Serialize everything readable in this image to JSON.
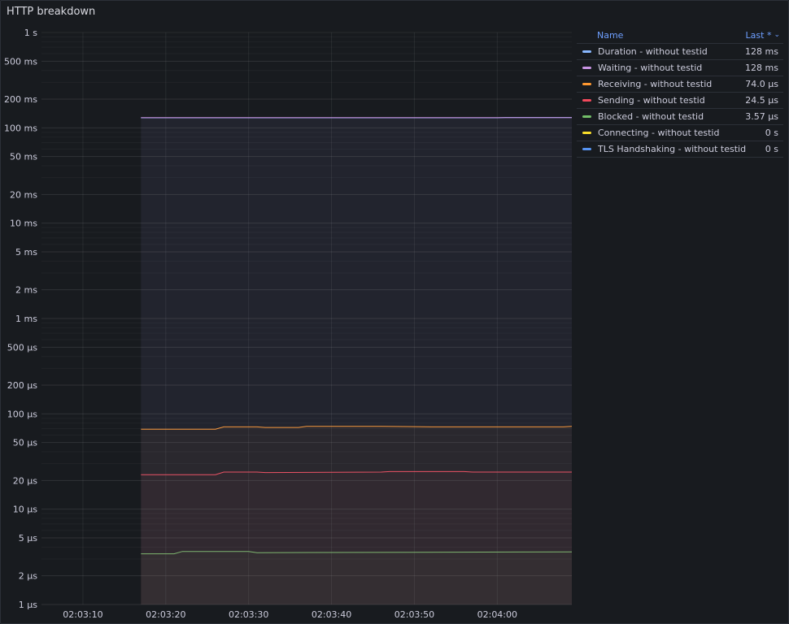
{
  "panel": {
    "title": "HTTP breakdown"
  },
  "legend": {
    "header_name": "Name",
    "header_value": "Last *",
    "header_sort_icon": "chevron-down-icon",
    "items": [
      {
        "name": "Duration - without testid",
        "value": "128 ms",
        "color": "#8ab8ff"
      },
      {
        "name": "Waiting - without testid",
        "value": "128 ms",
        "color": "#ca95e5"
      },
      {
        "name": "Receiving - without testid",
        "value": "74.0 µs",
        "color": "#ff9830"
      },
      {
        "name": "Sending - without testid",
        "value": "24.5 µs",
        "color": "#f2495c"
      },
      {
        "name": "Blocked - without testid",
        "value": "3.57 µs",
        "color": "#73bf69"
      },
      {
        "name": "Connecting - without testid",
        "value": "0 s",
        "color": "#fade2a"
      },
      {
        "name": "TLS Handshaking - without testid",
        "value": "0 s",
        "color": "#5794f2"
      }
    ]
  },
  "chart_data": {
    "type": "line",
    "title": "HTTP breakdown",
    "y_scale": "log",
    "ylim_seconds": [
      1e-06,
      1
    ],
    "y_ticks": [
      {
        "value": 1,
        "label": "1 s"
      },
      {
        "value": 0.5,
        "label": "500 ms"
      },
      {
        "value": 0.2,
        "label": "200 ms"
      },
      {
        "value": 0.1,
        "label": "100 ms"
      },
      {
        "value": 0.05,
        "label": "50 ms"
      },
      {
        "value": 0.02,
        "label": "20 ms"
      },
      {
        "value": 0.01,
        "label": "10 ms"
      },
      {
        "value": 0.005,
        "label": "5 ms"
      },
      {
        "value": 0.002,
        "label": "2 ms"
      },
      {
        "value": 0.001,
        "label": "1 ms"
      },
      {
        "value": 0.0005,
        "label": "500 µs"
      },
      {
        "value": 0.0002,
        "label": "200 µs"
      },
      {
        "value": 0.0001,
        "label": "100 µs"
      },
      {
        "value": 5e-05,
        "label": "50 µs"
      },
      {
        "value": 2e-05,
        "label": "20 µs"
      },
      {
        "value": 1e-05,
        "label": "10 µs"
      },
      {
        "value": 5e-06,
        "label": "5 µs"
      },
      {
        "value": 2e-06,
        "label": "2 µs"
      },
      {
        "value": 1e-06,
        "label": "1 µs"
      }
    ],
    "xlim": [
      "02:03:05",
      "02:04:09"
    ],
    "x_ticks": [
      "02:03:10",
      "02:03:20",
      "02:03:30",
      "02:03:40",
      "02:03:50",
      "02:04:00"
    ],
    "grid": true,
    "legend_position": "right",
    "series": [
      {
        "name": "Waiting - without testid",
        "color": "#ca95e5",
        "fill": true,
        "points": [
          [
            "02:03:17",
            0.128
          ],
          [
            "02:04:09",
            0.128
          ]
        ]
      },
      {
        "name": "Duration - without testid",
        "color": "#8ab8ff",
        "fill": true,
        "points": [
          [
            "02:03:17",
            0.1275
          ],
          [
            "02:04:00",
            0.1275
          ],
          [
            "02:04:01",
            0.1285
          ],
          [
            "02:04:09",
            0.1285
          ]
        ]
      },
      {
        "name": "Receiving - without testid",
        "color": "#ff9830",
        "fill": true,
        "points": [
          [
            "02:03:17",
            6.9e-05
          ],
          [
            "02:03:26",
            6.9e-05
          ],
          [
            "02:03:27",
            7.3e-05
          ],
          [
            "02:03:31",
            7.3e-05
          ],
          [
            "02:03:32",
            7.2e-05
          ],
          [
            "02:03:36",
            7.2e-05
          ],
          [
            "02:03:37",
            7.4e-05
          ],
          [
            "02:03:46",
            7.4e-05
          ],
          [
            "02:03:52",
            7.3e-05
          ],
          [
            "02:04:08",
            7.3e-05
          ],
          [
            "02:04:09",
            7.4e-05
          ]
        ]
      },
      {
        "name": "Sending - without testid",
        "color": "#f2495c",
        "fill": true,
        "points": [
          [
            "02:03:17",
            2.3e-05
          ],
          [
            "02:03:26",
            2.3e-05
          ],
          [
            "02:03:27",
            2.45e-05
          ],
          [
            "02:03:31",
            2.45e-05
          ],
          [
            "02:03:32",
            2.42e-05
          ],
          [
            "02:03:46",
            2.45e-05
          ],
          [
            "02:03:47",
            2.48e-05
          ],
          [
            "02:03:56",
            2.48e-05
          ],
          [
            "02:03:57",
            2.45e-05
          ],
          [
            "02:04:09",
            2.45e-05
          ]
        ]
      },
      {
        "name": "Blocked - without testid",
        "color": "#73bf69",
        "fill": true,
        "points": [
          [
            "02:03:17",
            3.4e-06
          ],
          [
            "02:03:21",
            3.4e-06
          ],
          [
            "02:03:22",
            3.6e-06
          ],
          [
            "02:03:30",
            3.6e-06
          ],
          [
            "02:03:31",
            3.5e-06
          ],
          [
            "02:04:09",
            3.57e-06
          ]
        ]
      },
      {
        "name": "Connecting - without testid",
        "color": "#fade2a",
        "fill": false,
        "points": [
          [
            "02:03:17",
            0
          ],
          [
            "02:04:09",
            0
          ]
        ]
      },
      {
        "name": "TLS Handshaking - without testid",
        "color": "#5794f2",
        "fill": false,
        "points": [
          [
            "02:03:17",
            0
          ],
          [
            "02:04:09",
            0
          ]
        ]
      }
    ]
  }
}
